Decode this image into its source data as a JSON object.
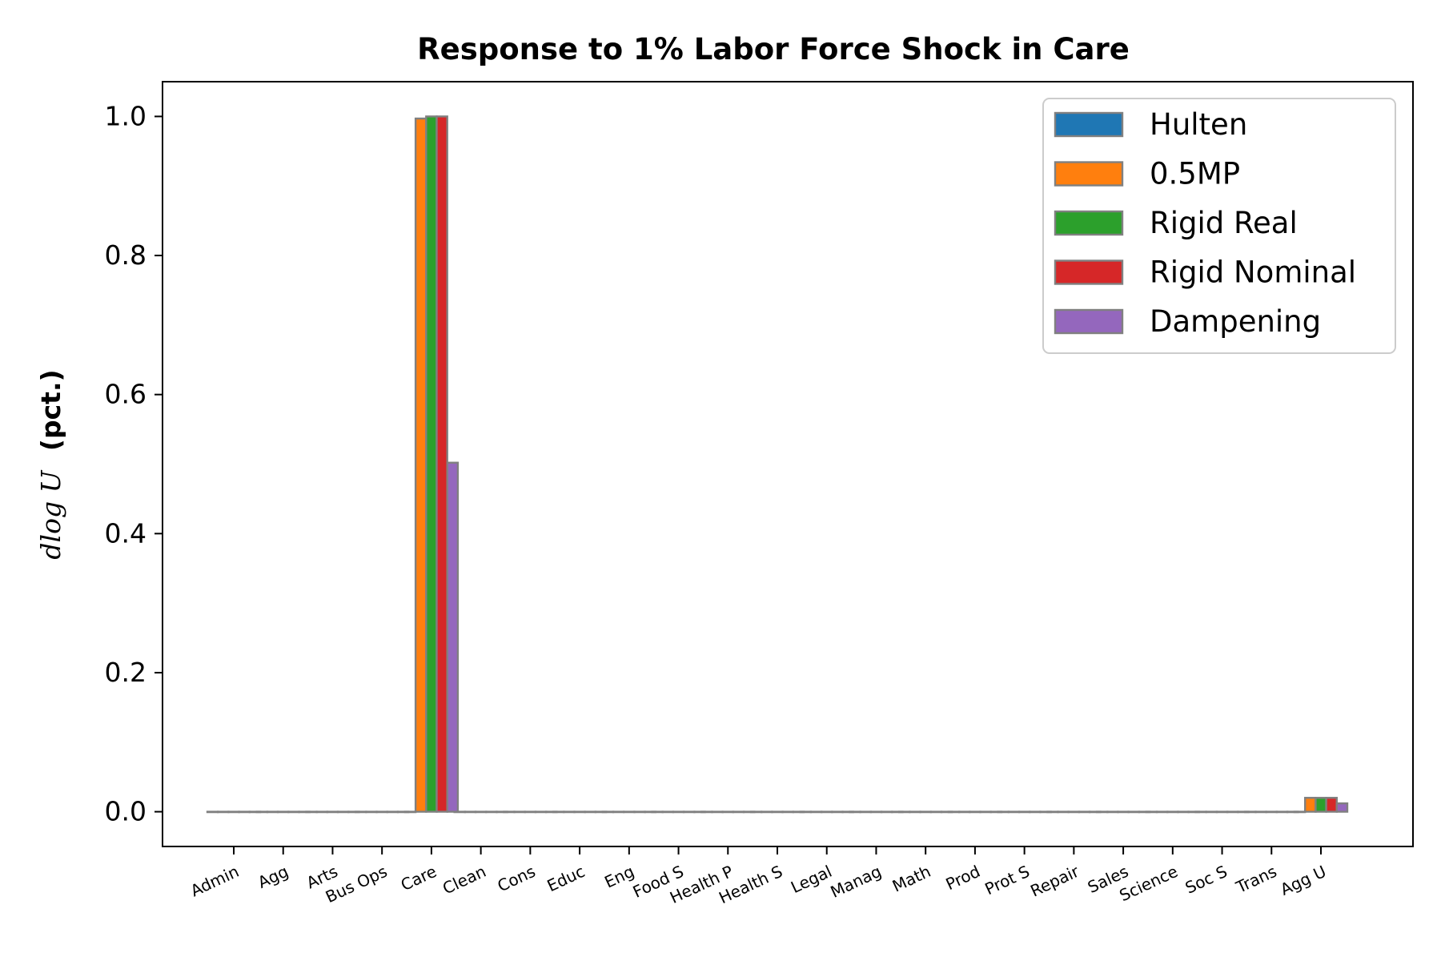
{
  "chart_data": {
    "type": "bar",
    "title": "Response to 1% Labor Force Shock in Care",
    "ylabel": {
      "math": "dlog U",
      "unit": "(pct.)"
    },
    "xlabel": "",
    "ylim": [
      -0.05,
      1.05
    ],
    "yticks": [
      0.0,
      0.2,
      0.4,
      0.6,
      0.8,
      1.0
    ],
    "ytick_labels": [
      "0.0",
      "0.2",
      "0.4",
      "0.6",
      "0.8",
      "1.0"
    ],
    "grid": false,
    "legend_position": "top-right",
    "categories": [
      "Admin",
      "Agg",
      "Arts",
      "Bus Ops",
      "Care",
      "Clean",
      "Cons",
      "Educ",
      "Eng",
      "Food S",
      "Health P",
      "Health S",
      "Legal",
      "Manag",
      "Math",
      "Prod",
      "Prot S",
      "Repair",
      "Sales",
      "Science",
      "Soc S",
      "Trans",
      "Agg U"
    ],
    "series": [
      {
        "name": "Hulten",
        "color": "#1f77b4",
        "values": [
          0,
          0,
          0,
          0,
          0,
          0,
          0,
          0,
          0,
          0,
          0,
          0,
          0,
          0,
          0,
          0,
          0,
          0,
          0,
          0,
          0,
          0,
          0
        ]
      },
      {
        "name": "0.5MP",
        "color": "#ff7f0e",
        "values": [
          0,
          0,
          0,
          0,
          0.997,
          0,
          0,
          0,
          0,
          0,
          0,
          0,
          0,
          0,
          0,
          0,
          0,
          0,
          0,
          0,
          0,
          0,
          0.02
        ]
      },
      {
        "name": "Rigid Real",
        "color": "#2ca02c",
        "values": [
          0,
          0,
          0,
          0,
          1.0,
          0,
          0,
          0,
          0,
          0,
          0,
          0,
          0,
          0,
          0,
          0,
          0,
          0,
          0,
          0,
          0,
          0,
          0.02
        ]
      },
      {
        "name": "Rigid Nominal",
        "color": "#d62728",
        "values": [
          0,
          0,
          0,
          0,
          1.0,
          0,
          0,
          0,
          0,
          0,
          0,
          0,
          0,
          0,
          0,
          0,
          0,
          0,
          0,
          0,
          0,
          0,
          0.02
        ]
      },
      {
        "name": "Dampening",
        "color": "#9467bd",
        "values": [
          0,
          0,
          0,
          0,
          0.502,
          0,
          0,
          0,
          0,
          0,
          0,
          0,
          0,
          0,
          0,
          0,
          0,
          0,
          0,
          0,
          0,
          0,
          0.012
        ]
      }
    ],
    "edge_color": "#808080"
  }
}
